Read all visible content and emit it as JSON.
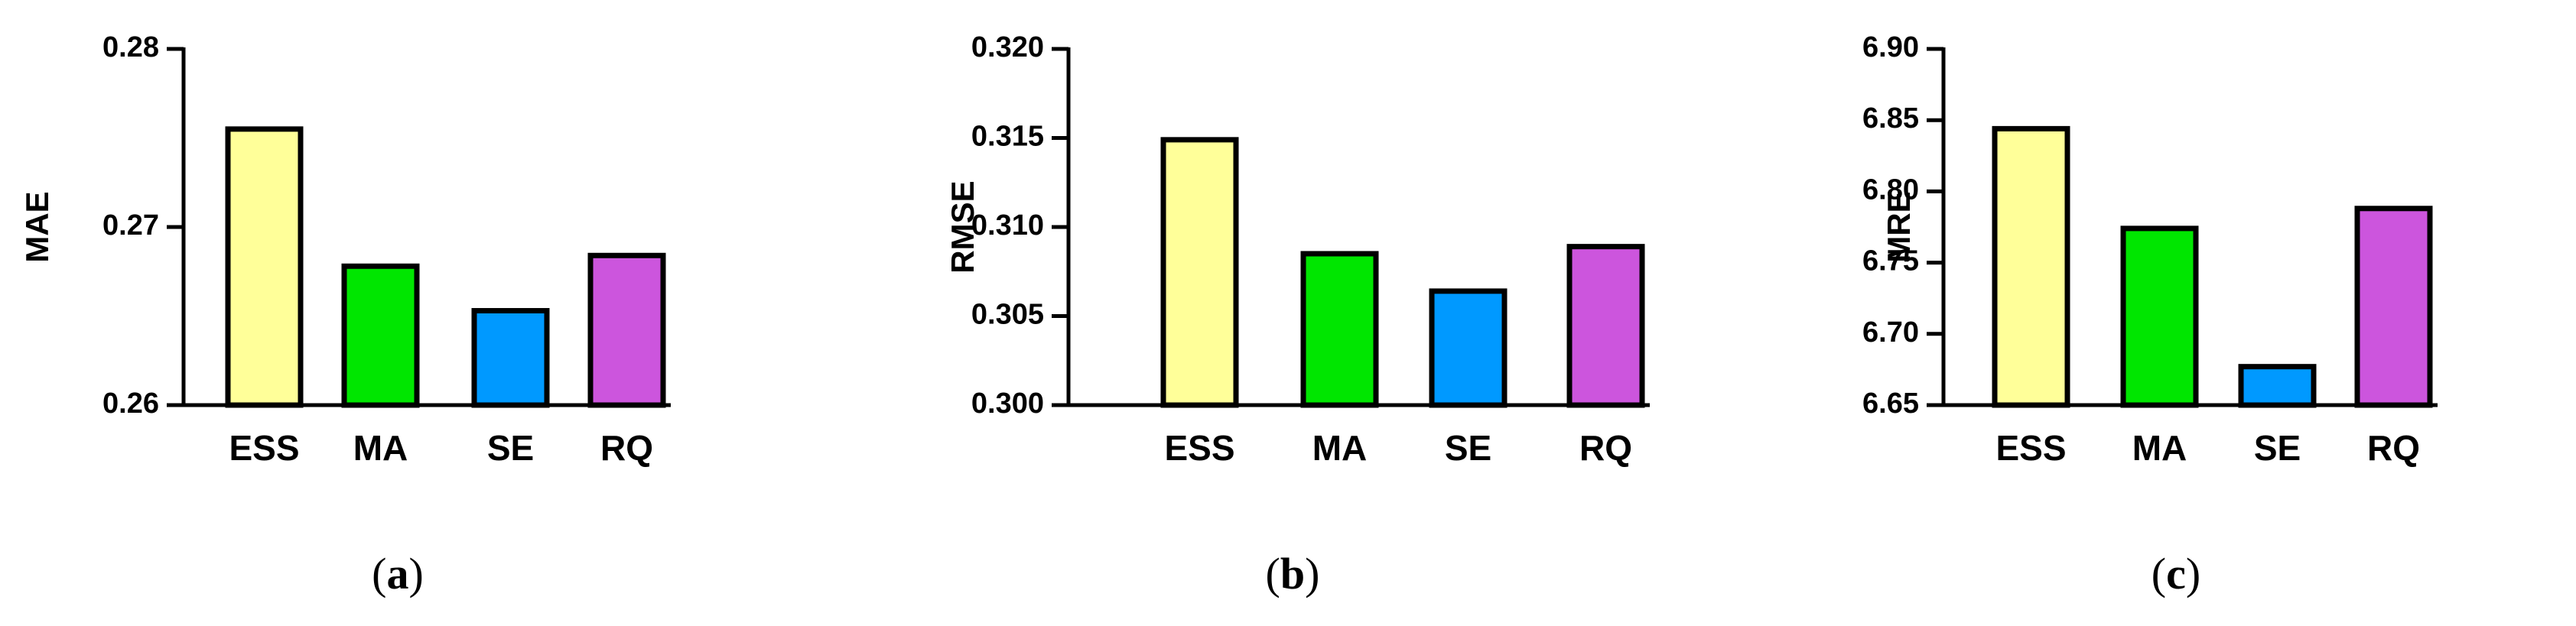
{
  "colors": {
    "ESS": "#ffff99",
    "MA": "#00e600",
    "SE": "#0099ff",
    "RQ": "#cc55dd",
    "axis": "#000000"
  },
  "chart_data": [
    {
      "type": "bar",
      "panel": "a",
      "ylabel": "MAE",
      "categories": [
        "ESS",
        "MA",
        "SE",
        "RQ"
      ],
      "values": [
        0.2755,
        0.2678,
        0.2653,
        0.2684
      ],
      "ylim": [
        0.26,
        0.28
      ],
      "yticks": [
        "0.26",
        "0.27",
        "0.28"
      ],
      "ytick_values": [
        0.26,
        0.27,
        0.28
      ],
      "caption": {
        "open": "(",
        "letter": "a",
        "close": ")"
      }
    },
    {
      "type": "bar",
      "panel": "b",
      "ylabel": "RMSE",
      "categories": [
        "ESS",
        "MA",
        "SE",
        "RQ"
      ],
      "values": [
        0.3149,
        0.3085,
        0.3064,
        0.3089
      ],
      "ylim": [
        0.3,
        0.32
      ],
      "yticks": [
        "0.300",
        "0.305",
        "0.310",
        "0.315",
        "0.320"
      ],
      "ytick_values": [
        0.3,
        0.305,
        0.31,
        0.315,
        0.32
      ],
      "caption": {
        "open": "(",
        "letter": "b",
        "close": ")"
      }
    },
    {
      "type": "bar",
      "panel": "c",
      "ylabel": "MRE",
      "categories": [
        "ESS",
        "MA",
        "SE",
        "RQ"
      ],
      "values": [
        6.844,
        6.774,
        6.677,
        6.788
      ],
      "ylim": [
        6.65,
        6.9
      ],
      "yticks": [
        "6.65",
        "6.70",
        "6.75",
        "6.80",
        "6.85",
        "6.90"
      ],
      "ytick_values": [
        6.65,
        6.7,
        6.75,
        6.8,
        6.85,
        6.9
      ],
      "caption": {
        "open": "(",
        "letter": "c",
        "close": ")"
      }
    }
  ]
}
